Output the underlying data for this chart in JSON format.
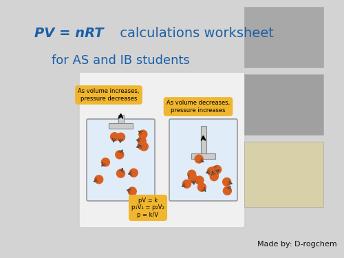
{
  "bg_color": "#d3d3d3",
  "title_bold": "PV = nRT",
  "title_normal": " calculations worksheet",
  "subtitle": "for AS and IB students",
  "title_color": "#1a5fa8",
  "title_fontsize": 14,
  "subtitle_fontsize": 13,
  "label1": "As volume increases,\npressure decreases",
  "label2": "As volume decreases,\npressure increases",
  "label3": "pV = k\np₁V₁ = p₂V₂\np = k/V",
  "credit": "Made by: D-rogchem",
  "label_bg": "#f0b429",
  "label_fontsize": 6,
  "credit_fontsize": 8,
  "portrait_color": "#b0b0b0",
  "portrait_edge": "#aaaaaa",
  "cylinder_face": "#e0ecf8",
  "cylinder_edge": "#999999",
  "piston_face": "#cccccc",
  "molecule_color": "#d96020",
  "arrow_color": "#444444"
}
